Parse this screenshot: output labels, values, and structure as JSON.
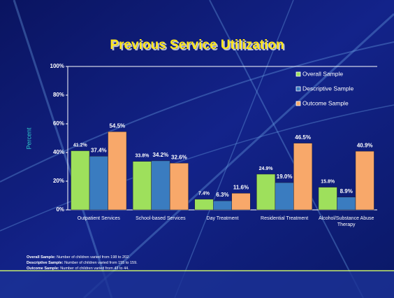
{
  "chart_data": {
    "type": "bar",
    "title": "Previous Service Utilization",
    "y_label": "Percent",
    "categories": [
      "Outpatient Services",
      "School-based Services",
      "Day Treatment",
      "Residential Treatment",
      "Alcohol/Substance Abuse Therapy"
    ],
    "series": [
      {
        "name": "Overall Sample",
        "color": "#9ee05c",
        "values": [
          41.2,
          33.8,
          7.4,
          24.9,
          15.8
        ],
        "value_labels": [
          "41.2%",
          "33.8%",
          "7.4%",
          "24.9%",
          "15.8%"
        ]
      },
      {
        "name": "Descriptive Sample",
        "color": "#3a7cc0",
        "values": [
          37.4,
          34.2,
          6.3,
          19,
          8.9
        ],
        "value_labels": [
          "37.4%",
          "34.2%",
          "6.3%",
          "19.0%",
          "8.9%"
        ]
      },
      {
        "name": "Outcome Sample",
        "color": "#f8a86a",
        "values": [
          54.5,
          32.6,
          11.6,
          46.5,
          40.9
        ],
        "value_labels": [
          "54.5%",
          "32.6%",
          "11.6%",
          "46.5%",
          "40.9%"
        ]
      }
    ],
    "ylim": [
      0,
      100
    ],
    "yticks": [
      {
        "value": 0,
        "label": "0%"
      },
      {
        "value": 20,
        "label": "20%"
      },
      {
        "value": 40,
        "label": "40%"
      },
      {
        "value": 60,
        "label": "60%"
      },
      {
        "value": 80,
        "label": "80%"
      },
      {
        "value": 100,
        "label": "100%"
      }
    ],
    "grid": false,
    "legend": "top-right",
    "notes": [
      {
        "label": "Overall Sample:",
        "text": " Number of children varied from 198 to 202."
      },
      {
        "label": "Descriptive Sample:",
        "text": " Number of children varied from 155 to 159."
      },
      {
        "label": "Outcome Sample:",
        "text": " Number of children varied from 43 to 44."
      }
    ]
  }
}
